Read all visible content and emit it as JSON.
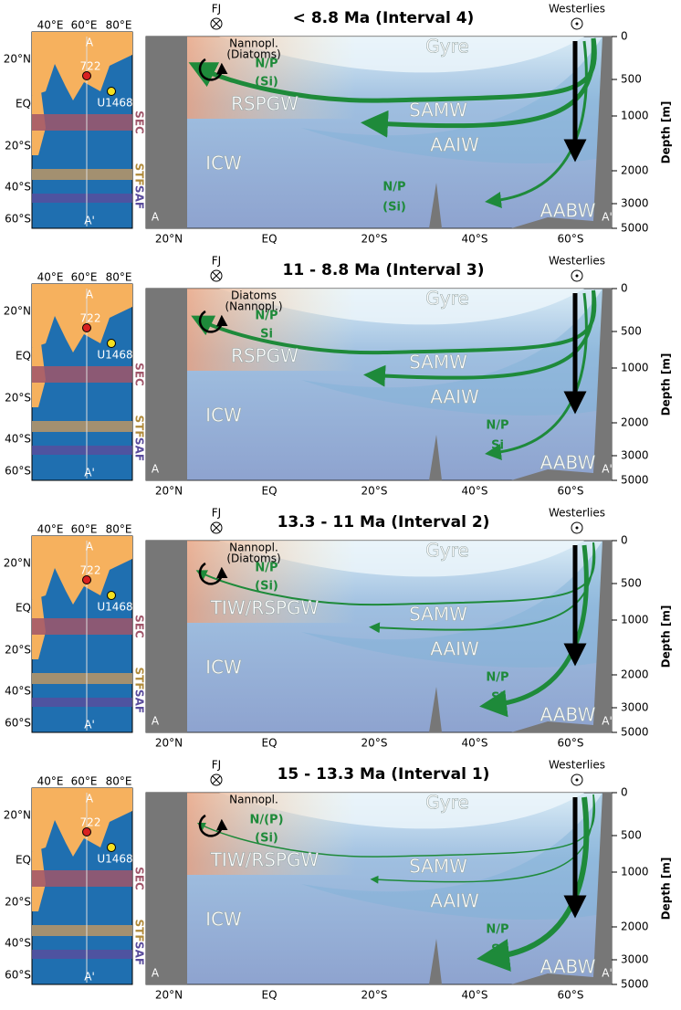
{
  "axes": {
    "x_ticks": [
      "20°N",
      "EQ",
      "20°S",
      "40°S",
      "60°S"
    ],
    "depth_ticks": [
      "0",
      "500",
      "1000",
      "2000",
      "3000",
      "5000"
    ],
    "depth_label": "Depth [m]"
  },
  "map": {
    "lon_labels": [
      "40°E",
      "60°E",
      "80°E"
    ],
    "lat_labels": [
      "20°N",
      "EQ",
      "20°S",
      "40°S",
      "60°S"
    ],
    "section_start": "A",
    "section_end": "A'",
    "site_1": "722",
    "site_2": "U1468",
    "front_1": "SEC",
    "front_2": "STF",
    "front_3": "SAF"
  },
  "panels": [
    {
      "title": "< 8.8 Ma (Interval 4)",
      "fj": "FJ",
      "westerlies": "Westerlies",
      "plankton": [
        "Nannopl.",
        "(Diatoms)"
      ],
      "np_upper": "N/P",
      "si_upper": "(Si)",
      "tropical_water": "RSPGW",
      "gyre": "Gyre",
      "samw": "SAMW",
      "aaiw": "AAIW",
      "icw": "ICW",
      "aabw": "AABW",
      "a": "A",
      "a_prime": "A'",
      "np_deep": "N/P",
      "si_deep": "(Si)"
    },
    {
      "title": "11 - 8.8 Ma (Interval 3)",
      "fj": "FJ",
      "westerlies": "Westerlies",
      "plankton": [
        "Diatoms",
        "(Nannopl.)"
      ],
      "np_upper": "N/P",
      "si_upper": "Si",
      "tropical_water": "RSPGW",
      "gyre": "Gyre",
      "samw": "SAMW",
      "aaiw": "AAIW",
      "icw": "ICW",
      "aabw": "AABW",
      "a": "A",
      "a_prime": "A'",
      "np_deep": "N/P",
      "si_deep": "Si"
    },
    {
      "title": "13.3 - 11 Ma (Interval 2)",
      "fj": "FJ",
      "westerlies": "Westerlies",
      "plankton": [
        "Nannopl.",
        "(Diatoms)"
      ],
      "np_upper": "N/P",
      "si_upper": "(Si)",
      "tropical_water": "TIW/RSPGW",
      "gyre": "Gyre",
      "samw": "SAMW",
      "aaiw": "AAIW",
      "icw": "ICW",
      "aabw": "AABW",
      "a": "A",
      "a_prime": "A'",
      "np_deep": "N/P",
      "si_deep": "Si"
    },
    {
      "title": "15 - 13.3 Ma (Interval 1)",
      "fj": "FJ",
      "westerlies": "Westerlies",
      "plankton": [
        "Nannopl."
      ],
      "np_upper": "N/(P)",
      "si_upper": "(Si)",
      "tropical_water": "TIW/RSPGW",
      "gyre": "Gyre",
      "samw": "SAMW",
      "aaiw": "AAIW",
      "icw": "ICW",
      "aabw": "AABW",
      "a": "A",
      "a_prime": "A'",
      "np_deep": "N/P",
      "si_deep": "Si"
    }
  ]
}
